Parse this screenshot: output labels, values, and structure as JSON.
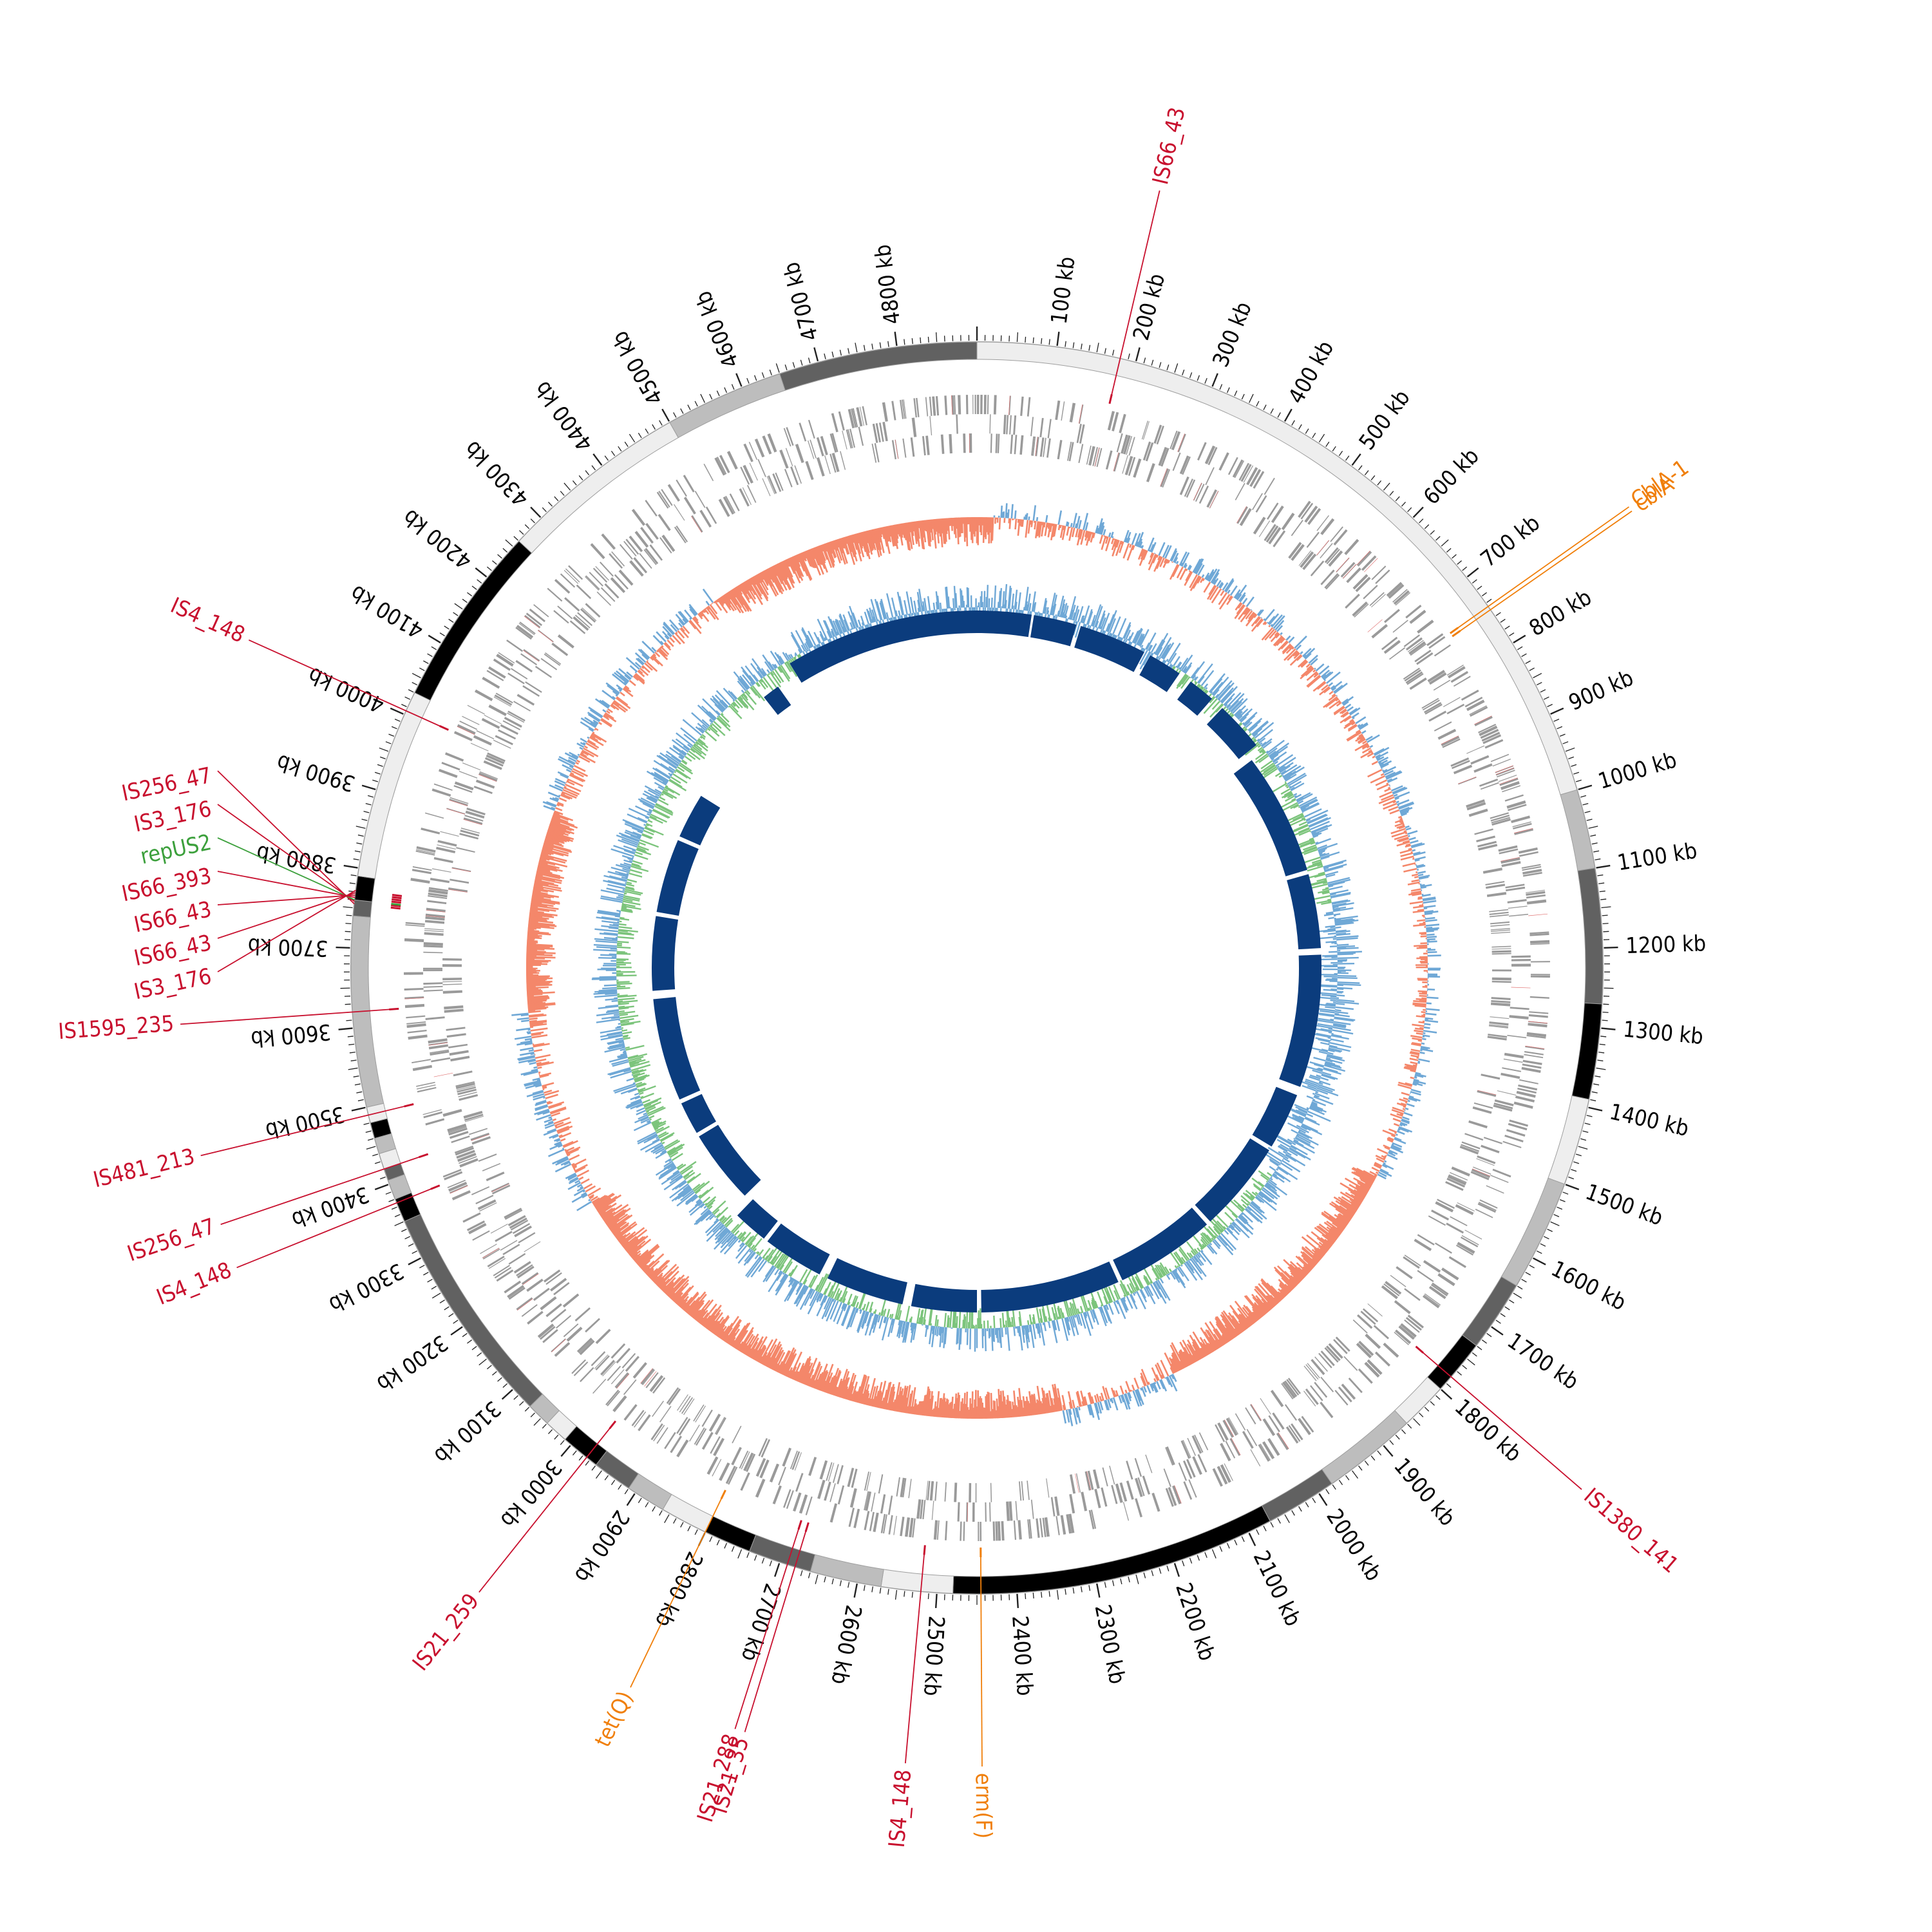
{
  "genome": {
    "length_kb": 4900,
    "tick_labels": [
      "100 kb",
      "200 kb",
      "300 kb",
      "400 kb",
      "500 kb",
      "600 kb",
      "700 kb",
      "800 kb",
      "900 kb",
      "1000 kb",
      "1100 kb",
      "1200 kb",
      "1300 kb",
      "1400 kb",
      "1500 kb",
      "1600 kb",
      "1700 kb",
      "1800 kb",
      "1900 kb",
      "2000 kb",
      "2100 kb",
      "2200 kb",
      "2300 kb",
      "2400 kb",
      "2500 kb",
      "2600 kb",
      "2700 kb",
      "2800 kb",
      "2900 kb",
      "3000 kb",
      "3100 kb",
      "3200 kb",
      "3300 kb",
      "3400 kb",
      "3500 kb",
      "3600 kb",
      "3700 kb",
      "3800 kb",
      "3900 kb",
      "4000 kb",
      "4100 kb",
      "4200 kb",
      "4300 kb",
      "4400 kb",
      "4500 kb",
      "4600 kb",
      "4700 kb",
      "4800 kb"
    ]
  },
  "contigs": [
    {
      "start": 0,
      "end": 1000,
      "shade": "#eeeeee"
    },
    {
      "start": 1000,
      "end": 1100,
      "shade": "#bdbdbd"
    },
    {
      "start": 1100,
      "end": 1270,
      "shade": "#616161"
    },
    {
      "start": 1270,
      "end": 1390,
      "shade": "#000000"
    },
    {
      "start": 1390,
      "end": 1500,
      "shade": "#eeeeee"
    },
    {
      "start": 1500,
      "end": 1640,
      "shade": "#bdbdbd"
    },
    {
      "start": 1640,
      "end": 1730,
      "shade": "#616161"
    },
    {
      "start": 1730,
      "end": 1800,
      "shade": "#000000"
    },
    {
      "start": 1800,
      "end": 1860,
      "shade": "#eeeeee"
    },
    {
      "start": 1860,
      "end": 1980,
      "shade": "#bdbdbd"
    },
    {
      "start": 1980,
      "end": 2070,
      "shade": "#616161"
    },
    {
      "start": 2070,
      "end": 2480,
      "shade": "#000000"
    },
    {
      "start": 2480,
      "end": 2570,
      "shade": "#eeeeee"
    },
    {
      "start": 2570,
      "end": 2660,
      "shade": "#bdbdbd"
    },
    {
      "start": 2660,
      "end": 2740,
      "shade": "#616161"
    },
    {
      "start": 2740,
      "end": 2800,
      "shade": "#000000"
    },
    {
      "start": 2800,
      "end": 2860,
      "shade": "#eeeeee"
    },
    {
      "start": 2860,
      "end": 2910,
      "shade": "#bdbdbd"
    },
    {
      "start": 2910,
      "end": 2960,
      "shade": "#616161"
    },
    {
      "start": 2960,
      "end": 3010,
      "shade": "#000000"
    },
    {
      "start": 3010,
      "end": 3040,
      "shade": "#eeeeee"
    },
    {
      "start": 3040,
      "end": 3070,
      "shade": "#bdbdbd"
    },
    {
      "start": 3070,
      "end": 3350,
      "shade": "#616161"
    },
    {
      "start": 3350,
      "end": 3380,
      "shade": "#000000"
    },
    {
      "start": 3380,
      "end": 3405,
      "shade": "#bdbdbd"
    },
    {
      "start": 3405,
      "end": 3420,
      "shade": "#616161"
    },
    {
      "start": 3420,
      "end": 3440,
      "shade": "#eeeeee"
    },
    {
      "start": 3440,
      "end": 3460,
      "shade": "#bdbdbd"
    },
    {
      "start": 3460,
      "end": 3480,
      "shade": "#000000"
    },
    {
      "start": 3480,
      "end": 3500,
      "shade": "#eeeeee"
    },
    {
      "start": 3500,
      "end": 3740,
      "shade": "#bdbdbd"
    },
    {
      "start": 3740,
      "end": 3760,
      "shade": "#616161"
    },
    {
      "start": 3760,
      "end": 3790,
      "shade": "#000000"
    },
    {
      "start": 3790,
      "end": 4030,
      "shade": "#eeeeee"
    },
    {
      "start": 4030,
      "end": 4260,
      "shade": "#000000"
    },
    {
      "start": 4260,
      "end": 4500,
      "shade": "#eeeeee"
    },
    {
      "start": 4500,
      "end": 4650,
      "shade": "#bdbdbd"
    },
    {
      "start": 4650,
      "end": 4900,
      "shade": "#616161"
    }
  ],
  "annotations": [
    {
      "label": "IS66_43",
      "pos": 180,
      "color": "#c8102e"
    },
    {
      "label": "CblA-1",
      "pos": 745,
      "color": "#f07f0a"
    },
    {
      "label": "cblA",
      "pos": 750,
      "color": "#f07f0a"
    },
    {
      "label": "IS1380_141",
      "pos": 1780,
      "color": "#c8102e"
    },
    {
      "label": "erm(F)",
      "pos": 2445,
      "color": "#f07f0a"
    },
    {
      "label": "IS4_148",
      "pos": 2520,
      "color": "#c8102e"
    },
    {
      "label": "IS21_35",
      "pos": 2680,
      "color": "#c8102e"
    },
    {
      "label": "IS21_288",
      "pos": 2690,
      "color": "#c8102e"
    },
    {
      "label": "tet(Q)",
      "pos": 2800,
      "color": "#f07f0a"
    },
    {
      "label": "IS21_259",
      "pos": 2975,
      "color": "#c8102e"
    },
    {
      "label": "IS4_148",
      "pos": 3375,
      "color": "#c8102e"
    },
    {
      "label": "IS256_47",
      "pos": 3420,
      "color": "#c8102e"
    },
    {
      "label": "IS481_213",
      "pos": 3490,
      "color": "#c8102e"
    },
    {
      "label": "IS1595_235",
      "pos": 3620,
      "color": "#c8102e"
    },
    {
      "label": "IS256_47",
      "pos": 3755,
      "color": "#c8102e"
    },
    {
      "label": "IS3_176",
      "pos": 3758,
      "color": "#c8102e"
    },
    {
      "label": "repUS2",
      "pos": 3760,
      "color": "#3ca03c"
    },
    {
      "label": "IS66_393",
      "pos": 3763,
      "color": "#c8102e"
    },
    {
      "label": "IS66_43",
      "pos": 3766,
      "color": "#c8102e"
    },
    {
      "label": "IS66_43",
      "pos": 3769,
      "color": "#c8102e"
    },
    {
      "label": "IS3_176",
      "pos": 3772,
      "color": "#c8102e"
    },
    {
      "label": "IS4_148",
      "pos": 4005,
      "color": "#c8102e"
    }
  ],
  "colors": {
    "gene_blocks": "#9a9a9a",
    "gene_marks": "#e07070",
    "gc_above": "#6fa8d6",
    "gc_below": "#f4876a",
    "skew_above": "#6fa8d6",
    "skew_below": "#7cc47c",
    "homology": "#0b3c7d"
  }
}
